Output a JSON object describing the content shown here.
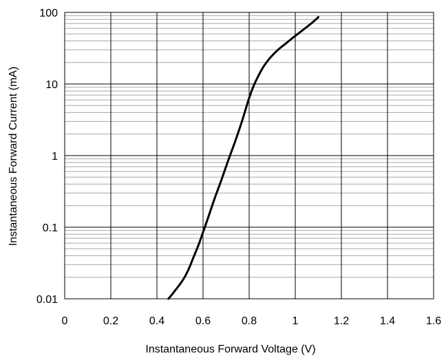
{
  "chart_data": {
    "type": "line",
    "title": "",
    "xlabel": "Instantaneous Forward Voltage (V)",
    "ylabel": "Instantaneous Forward Current (mA)",
    "x_scale": "linear",
    "y_scale": "log",
    "xlim": [
      0,
      1.6
    ],
    "ylim": [
      0.01,
      100
    ],
    "x_ticks": [
      0,
      0.2,
      0.4,
      0.6,
      0.8,
      1.0,
      1.2,
      1.4,
      1.6
    ],
    "x_tick_labels": [
      "0",
      "0.2",
      "0.4",
      "0.6",
      "0.8",
      "1",
      "1.2",
      "1.4",
      "1.6"
    ],
    "y_ticks": [
      0.01,
      0.1,
      1,
      10,
      100
    ],
    "y_tick_labels": [
      "0.01",
      "0.1",
      "1",
      "10",
      "100"
    ],
    "grid": {
      "major": true,
      "minor_y": true
    },
    "legend": "none",
    "colors": {
      "line": "#000000",
      "major_grid": "#000000",
      "minor_grid": "#a6a6a6"
    },
    "series": [
      {
        "x": [
          0.45,
          0.47,
          0.5,
          0.52,
          0.54,
          0.56,
          0.58,
          0.6,
          0.62,
          0.65,
          0.68,
          0.71,
          0.74,
          0.77,
          0.8,
          0.82,
          0.84,
          0.86,
          0.88,
          0.9,
          0.93,
          0.96,
          1.0,
          1.04,
          1.08,
          1.1
        ],
        "y": [
          0.01,
          0.012,
          0.016,
          0.02,
          0.027,
          0.039,
          0.056,
          0.085,
          0.13,
          0.25,
          0.46,
          0.87,
          1.6,
          3.1,
          6.4,
          9.5,
          13.0,
          17.0,
          21.0,
          25.0,
          31.0,
          37.0,
          47.0,
          59.0,
          75.0,
          86.0
        ]
      }
    ]
  }
}
